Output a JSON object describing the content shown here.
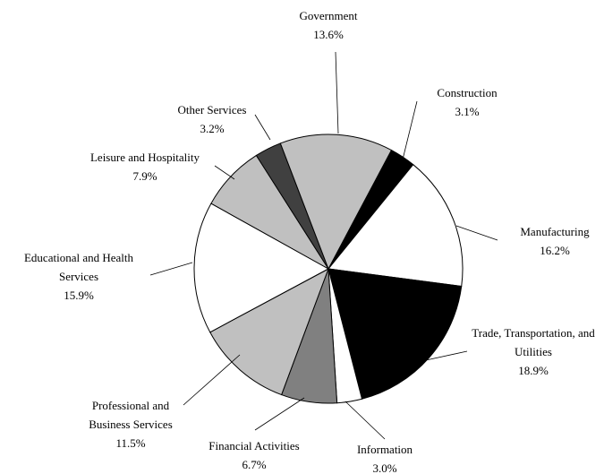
{
  "chart_data": {
    "type": "pie",
    "categories": [
      "Construction",
      "Manufacturing",
      "Trade, Transportation, and Utilities",
      "Information",
      "Financial Activities",
      "Professional and Business Services",
      "Educational and Health Services",
      "Leisure and Hospitality",
      "Other Services",
      "Government"
    ],
    "values": [
      3.1,
      16.2,
      18.9,
      3.0,
      6.7,
      11.5,
      15.9,
      7.9,
      3.2,
      13.6
    ],
    "value_labels": [
      "3.1%",
      "16.2%",
      "18.9%",
      "3.0%",
      "6.7%",
      "11.5%",
      "15.9%",
      "7.9%",
      "3.2%",
      "13.6%"
    ],
    "colors": [
      "#000000",
      "#ffffff",
      "#000000",
      "#ffffff",
      "#808080",
      "#c0c0c0",
      "#ffffff",
      "#c0c0c0",
      "#404040",
      "#c0c0c0"
    ]
  }
}
